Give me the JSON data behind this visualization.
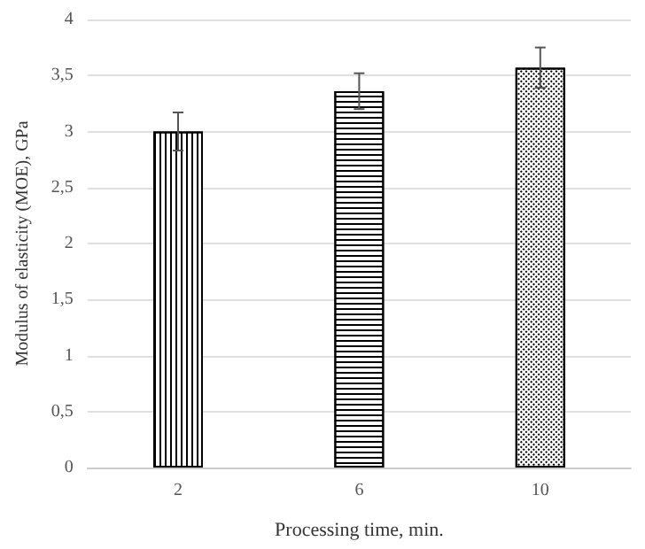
{
  "chart_data": {
    "type": "bar",
    "xlabel": "Processing time, min.",
    "ylabel": "Modulus of elasticity (MOE), GPa",
    "categories": [
      "2",
      "6",
      "10"
    ],
    "values": [
      3.0,
      3.36,
      3.57
    ],
    "errors": [
      0.17,
      0.16,
      0.18
    ],
    "ylim": [
      0,
      4
    ],
    "yticks": [
      0,
      {
        "value": 0.5,
        "label": "0,5"
      },
      1,
      {
        "value": 1.5,
        "label": "1,5"
      },
      2,
      {
        "value": 2.5,
        "label": "2,5"
      },
      3,
      {
        "value": 3.5,
        "label": "3,5"
      },
      4
    ],
    "grid": "y"
  }
}
